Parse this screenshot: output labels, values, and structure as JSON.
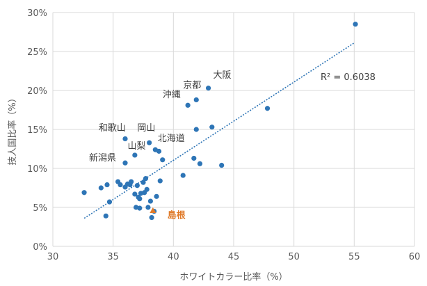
{
  "chart_data": {
    "type": "scatter",
    "xlabel": "ホワイトカラー比率（%）",
    "ylabel": "技人国比率（%）",
    "xlim": [
      30,
      60
    ],
    "ylim": [
      0,
      30
    ],
    "x_ticks": [
      30,
      35,
      40,
      45,
      50,
      55,
      60
    ],
    "y_ticks": [
      "0%",
      "5%",
      "10%",
      "15%",
      "20%",
      "25%",
      "30%"
    ],
    "y_tick_values": [
      0,
      5,
      10,
      15,
      20,
      25,
      30
    ],
    "grid": "vertical and horizontal",
    "point_color": "#2e75b6",
    "highlight_color": "#e07b2a",
    "trendline": {
      "type": "linear",
      "style": "dotted",
      "from": [
        32.6,
        3.6
      ],
      "to": [
        55.0,
        26.1
      ],
      "r_squared_label": "R² = 0.6038"
    },
    "points": [
      {
        "x": 32.6,
        "y": 6.9
      },
      {
        "x": 34.0,
        "y": 7.5
      },
      {
        "x": 34.5,
        "y": 7.9
      },
      {
        "x": 34.7,
        "y": 5.7
      },
      {
        "x": 34.4,
        "y": 3.9
      },
      {
        "x": 35.4,
        "y": 8.3
      },
      {
        "x": 35.6,
        "y": 7.9
      },
      {
        "x": 36.0,
        "y": 7.6
      },
      {
        "x": 36.2,
        "y": 8.0
      },
      {
        "x": 36.5,
        "y": 8.3
      },
      {
        "x": 36.4,
        "y": 7.9
      },
      {
        "x": 36.8,
        "y": 6.7
      },
      {
        "x": 37.0,
        "y": 7.8
      },
      {
        "x": 37.1,
        "y": 6.3
      },
      {
        "x": 37.2,
        "y": 6.1
      },
      {
        "x": 37.3,
        "y": 6.8
      },
      {
        "x": 37.5,
        "y": 8.2
      },
      {
        "x": 37.7,
        "y": 8.7
      },
      {
        "x": 37.6,
        "y": 6.9
      },
      {
        "x": 37.8,
        "y": 7.3
      },
      {
        "x": 36.9,
        "y": 5.0
      },
      {
        "x": 37.2,
        "y": 4.9
      },
      {
        "x": 37.9,
        "y": 5.0
      },
      {
        "x": 38.1,
        "y": 5.8
      },
      {
        "x": 38.2,
        "y": 3.7
      },
      {
        "x": 38.4,
        "y": 4.5
      },
      {
        "x": 38.6,
        "y": 6.4
      },
      {
        "x": 38.9,
        "y": 8.4
      },
      {
        "x": 36.0,
        "y": 10.7
      },
      {
        "x": 36.8,
        "y": 11.7
      },
      {
        "x": 36.0,
        "y": 13.8
      },
      {
        "x": 38.0,
        "y": 13.3
      },
      {
        "x": 38.5,
        "y": 12.4
      },
      {
        "x": 38.8,
        "y": 12.2
      },
      {
        "x": 39.1,
        "y": 11.1
      },
      {
        "x": 40.8,
        "y": 9.1
      },
      {
        "x": 41.7,
        "y": 11.3
      },
      {
        "x": 42.2,
        "y": 10.6
      },
      {
        "x": 44.0,
        "y": 10.4
      },
      {
        "x": 41.9,
        "y": 15.0
      },
      {
        "x": 43.2,
        "y": 15.3
      },
      {
        "x": 41.2,
        "y": 18.1
      },
      {
        "x": 41.9,
        "y": 18.8
      },
      {
        "x": 42.9,
        "y": 20.3
      },
      {
        "x": 47.8,
        "y": 17.7
      },
      {
        "x": 55.1,
        "y": 28.5
      }
    ],
    "highlight_point": {
      "x": 38.3,
      "y": 4.6
    },
    "annotations": [
      {
        "text": "大阪",
        "x": 43.3,
        "y": 21.6
      },
      {
        "text": "京都",
        "x": 40.8,
        "y": 20.3
      },
      {
        "text": "沖縄",
        "x": 39.1,
        "y": 19.1
      },
      {
        "text": "和歌山",
        "x": 33.8,
        "y": 14.8
      },
      {
        "text": "岡山",
        "x": 37.0,
        "y": 14.8
      },
      {
        "text": "北海道",
        "x": 38.7,
        "y": 13.5
      },
      {
        "text": "山梨",
        "x": 36.2,
        "y": 12.5
      },
      {
        "text": "新潟県",
        "x": 33.0,
        "y": 11.0
      },
      {
        "text": "島根",
        "x": 39.5,
        "y": 3.6,
        "highlight": true
      }
    ]
  }
}
